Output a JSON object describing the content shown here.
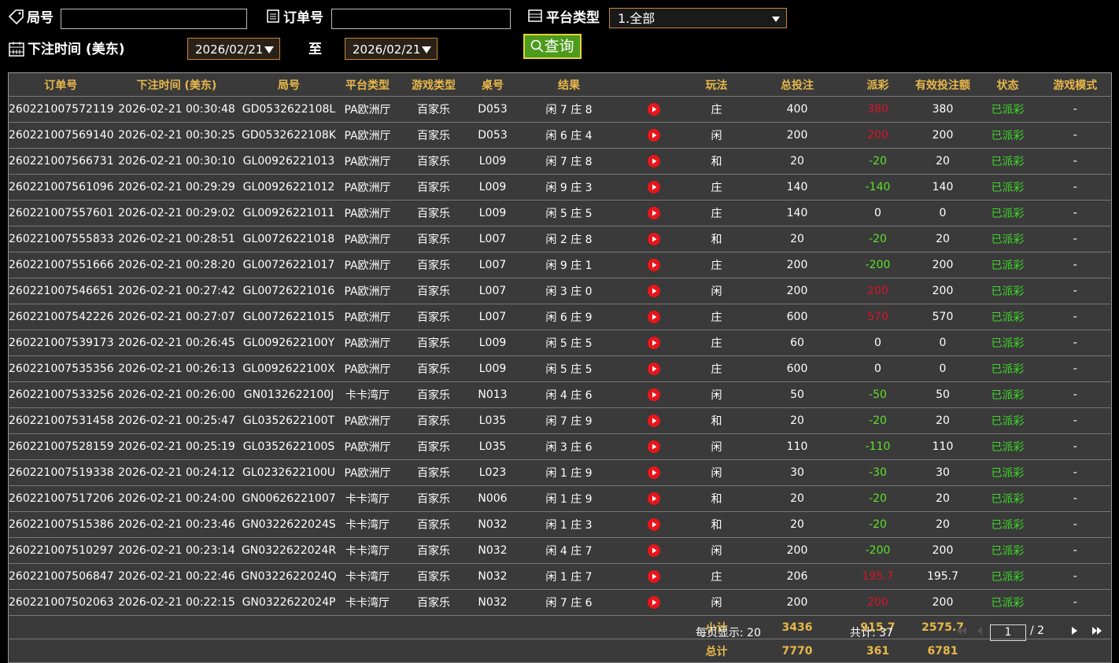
{
  "filters": {
    "round_label": "局号",
    "order_label": "订单号",
    "platform_label": "平台类型",
    "platform_value": "1.全部",
    "time_label": "下注时间 (美东)",
    "date_from": "2026/02/21",
    "to_label": "至",
    "date_to": "2026/02/21",
    "query_button": "查询"
  },
  "table": {
    "headers": [
      "订单号",
      "下注时间 (美东)",
      "局号",
      "平台类型",
      "游戏类型",
      "桌号",
      "结果",
      "玩法",
      "总投注",
      "派彩",
      "有效投注额",
      "状态",
      "游戏模式"
    ],
    "rows": [
      [
        "260221007572119",
        "2026-02-21 00:30:48",
        "GD0532622108L",
        "PA欧洲厅",
        "百家乐",
        "D053",
        "闲 7 庄 8",
        "庄",
        400,
        380,
        380,
        "已派彩",
        "-"
      ],
      [
        "260221007569140",
        "2026-02-21 00:30:25",
        "GD0532622108K",
        "PA欧洲厅",
        "百家乐",
        "D053",
        "闲 6 庄 4",
        "闲",
        200,
        200,
        200,
        "已派彩",
        "-"
      ],
      [
        "260221007566731",
        "2026-02-21 00:30:10",
        "GL00926221013",
        "PA欧洲厅",
        "百家乐",
        "L009",
        "闲 7 庄 8",
        "和",
        20,
        -20,
        20,
        "已派彩",
        "-"
      ],
      [
        "260221007561096",
        "2026-02-21 00:29:29",
        "GL00926221012",
        "PA欧洲厅",
        "百家乐",
        "L009",
        "闲 9 庄 3",
        "庄",
        140,
        -140,
        140,
        "已派彩",
        "-"
      ],
      [
        "260221007557601",
        "2026-02-21 00:29:02",
        "GL00926221011",
        "PA欧洲厅",
        "百家乐",
        "L009",
        "闲 5 庄 5",
        "庄",
        140,
        0,
        0,
        "已派彩",
        "-"
      ],
      [
        "260221007555833",
        "2026-02-21 00:28:51",
        "GL00726221018",
        "PA欧洲厅",
        "百家乐",
        "L007",
        "闲 2 庄 8",
        "和",
        20,
        -20,
        20,
        "已派彩",
        "-"
      ],
      [
        "260221007551666",
        "2026-02-21 00:28:20",
        "GL00726221017",
        "PA欧洲厅",
        "百家乐",
        "L007",
        "闲 9 庄 1",
        "庄",
        200,
        -200,
        200,
        "已派彩",
        "-"
      ],
      [
        "260221007546651",
        "2026-02-21 00:27:42",
        "GL00726221016",
        "PA欧洲厅",
        "百家乐",
        "L007",
        "闲 3 庄 0",
        "闲",
        200,
        200,
        200,
        "已派彩",
        "-"
      ],
      [
        "260221007542226",
        "2026-02-21 00:27:07",
        "GL00726221015",
        "PA欧洲厅",
        "百家乐",
        "L007",
        "闲 6 庄 9",
        "庄",
        600,
        570,
        570,
        "已派彩",
        "-"
      ],
      [
        "260221007539173",
        "2026-02-21 00:26:45",
        "GL0092622100Y",
        "PA欧洲厅",
        "百家乐",
        "L009",
        "闲 5 庄 5",
        "庄",
        60,
        0,
        0,
        "已派彩",
        "-"
      ],
      [
        "260221007535356",
        "2026-02-21 00:26:13",
        "GL0092622100X",
        "PA欧洲厅",
        "百家乐",
        "L009",
        "闲 5 庄 5",
        "庄",
        600,
        0,
        0,
        "已派彩",
        "-"
      ],
      [
        "260221007533256",
        "2026-02-21 00:26:00",
        "GN0132622100J",
        "卡卡湾厅",
        "百家乐",
        "N013",
        "闲 4 庄 6",
        "闲",
        50,
        -50,
        50,
        "已派彩",
        "-"
      ],
      [
        "260221007531458",
        "2026-02-21 00:25:47",
        "GL0352622100T",
        "PA欧洲厅",
        "百家乐",
        "L035",
        "闲 7 庄 9",
        "和",
        20,
        -20,
        20,
        "已派彩",
        "-"
      ],
      [
        "260221007528159",
        "2026-02-21 00:25:19",
        "GL0352622100S",
        "PA欧洲厅",
        "百家乐",
        "L035",
        "闲 3 庄 6",
        "闲",
        110,
        -110,
        110,
        "已派彩",
        "-"
      ],
      [
        "260221007519338",
        "2026-02-21 00:24:12",
        "GL0232622100U",
        "PA欧洲厅",
        "百家乐",
        "L023",
        "闲 1 庄 9",
        "闲",
        30,
        -30,
        30,
        "已派彩",
        "-"
      ],
      [
        "260221007517206",
        "2026-02-21 00:24:00",
        "GN00626221007",
        "卡卡湾厅",
        "百家乐",
        "N006",
        "闲 1 庄 9",
        "和",
        20,
        -20,
        20,
        "已派彩",
        "-"
      ],
      [
        "260221007515386",
        "2026-02-21 00:23:46",
        "GN0322622024S",
        "卡卡湾厅",
        "百家乐",
        "N032",
        "闲 1 庄 3",
        "和",
        20,
        -20,
        20,
        "已派彩",
        "-"
      ],
      [
        "260221007510297",
        "2026-02-21 00:23:14",
        "GN0322622024R",
        "卡卡湾厅",
        "百家乐",
        "N032",
        "闲 4 庄 7",
        "闲",
        200,
        -200,
        200,
        "已派彩",
        "-"
      ],
      [
        "260221007506847",
        "2026-02-21 00:22:46",
        "GN0322622024Q",
        "卡卡湾厅",
        "百家乐",
        "N032",
        "闲 1 庄 7",
        "庄",
        206,
        195.7,
        195.7,
        "已派彩",
        "-"
      ],
      [
        "260221007502063",
        "2026-02-21 00:22:15",
        "GN0322622024P",
        "卡卡湾厅",
        "百家乐",
        "N032",
        "闲 7 庄 6",
        "闲",
        200,
        200,
        200,
        "已派彩",
        "-"
      ]
    ],
    "subtotal": {
      "label": "小计",
      "total_bet": 3436,
      "payout": 915.7,
      "valid_bet": 2575.7
    },
    "total": {
      "label": "总计",
      "total_bet": 7770,
      "payout": 361,
      "valid_bet": 6781
    }
  },
  "pagination": {
    "per_page": "每页显示: 20",
    "count": "共计: 37",
    "current_page": 1,
    "page_total": "/ 2"
  }
}
